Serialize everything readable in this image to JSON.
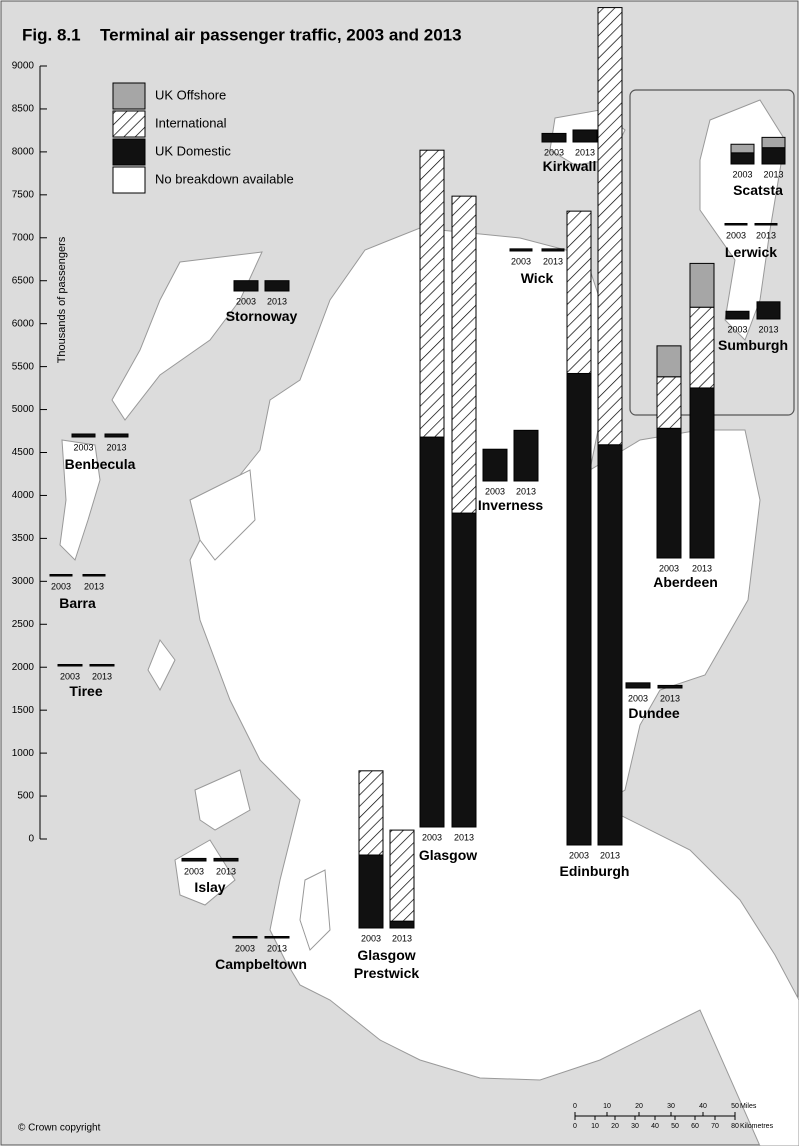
{
  "chart_data": {
    "type": "bar",
    "figure_number": "Fig. 8.1",
    "title": "Terminal air passenger traffic, 2003 and 2013",
    "ylabel": "Thousands of passengers",
    "ylim": [
      0,
      9000
    ],
    "yticks": [
      0,
      500,
      1000,
      1500,
      2000,
      2500,
      3000,
      3500,
      4000,
      4500,
      5000,
      5500,
      6000,
      6500,
      7000,
      7500,
      8000,
      8500,
      9000
    ],
    "years": [
      "2003",
      "2013"
    ],
    "categories": [
      "Glasgow",
      "Edinburgh",
      "Aberdeen",
      "Glasgow Prestwick",
      "Inverness",
      "Kirkwall",
      "Stornoway",
      "Sumburgh",
      "Scatsta",
      "Lerwick",
      "Wick",
      "Benbecula",
      "Barra",
      "Tiree",
      "Dundee",
      "Islay",
      "Campbeltown"
    ],
    "series": [
      {
        "name": "UK Offshore",
        "color": "#a6a6a6",
        "values": [
          [
            null,
            null
          ],
          [
            null,
            null
          ],
          [
            360,
            510
          ],
          [
            null,
            null
          ],
          [
            null,
            null
          ],
          [
            null,
            null
          ],
          [
            null,
            null
          ],
          [
            null,
            null
          ],
          [
            100,
            120
          ],
          [
            null,
            null
          ],
          [
            null,
            null
          ],
          [
            null,
            null
          ],
          [
            null,
            null
          ],
          [
            null,
            null
          ],
          [
            null,
            null
          ],
          [
            null,
            null
          ],
          [
            null,
            null
          ]
        ]
      },
      {
        "name": "International",
        "color": "#ffffff",
        "pattern": "hatch",
        "values": [
          [
            3340,
            3690
          ],
          [
            1890,
            5090
          ],
          [
            600,
            940
          ],
          [
            980,
            1060
          ],
          [
            null,
            null
          ],
          [
            null,
            null
          ],
          [
            null,
            null
          ],
          [
            null,
            null
          ],
          [
            null,
            null
          ],
          [
            null,
            null
          ],
          [
            null,
            null
          ],
          [
            null,
            null
          ],
          [
            null,
            null
          ],
          [
            null,
            null
          ],
          [
            null,
            null
          ],
          [
            null,
            null
          ],
          [
            null,
            null
          ]
        ]
      },
      {
        "name": "UK Domestic",
        "color": "#111111",
        "values": [
          [
            4540,
            3655
          ],
          [
            5490,
            4660
          ],
          [
            1510,
            1980
          ],
          [
            850,
            80
          ],
          [
            370,
            590
          ],
          [
            100,
            140
          ],
          [
            120,
            120
          ],
          [
            90,
            200
          ],
          [
            130,
            190
          ],
          [
            5,
            5
          ],
          [
            25,
            25
          ],
          [
            35,
            35
          ],
          [
            10,
            10
          ],
          [
            10,
            10
          ],
          [
            60,
            30
          ],
          [
            30,
            30
          ],
          [
            10,
            10
          ]
        ]
      },
      {
        "name": "No breakdown available",
        "color": "#ffffff",
        "values": [
          [
            null,
            null
          ],
          [
            null,
            null
          ],
          [
            null,
            null
          ],
          [
            null,
            null
          ],
          [
            null,
            null
          ],
          [
            null,
            null
          ],
          [
            null,
            null
          ],
          [
            null,
            null
          ],
          [
            null,
            null
          ],
          [
            null,
            null
          ],
          [
            null,
            null
          ],
          [
            null,
            null
          ],
          [
            null,
            null
          ],
          [
            null,
            null
          ],
          [
            null,
            null
          ],
          [
            null,
            null
          ],
          [
            null,
            null
          ]
        ]
      }
    ],
    "scale": {
      "miles": {
        "ticks": [
          0,
          10,
          20,
          30,
          40,
          50
        ],
        "unit": "Miles"
      },
      "kilometres": {
        "ticks": [
          0,
          10,
          20,
          30,
          40,
          50,
          60,
          70,
          80
        ],
        "unit": "Kilometres"
      }
    },
    "copyright": "© Crown copyright"
  }
}
